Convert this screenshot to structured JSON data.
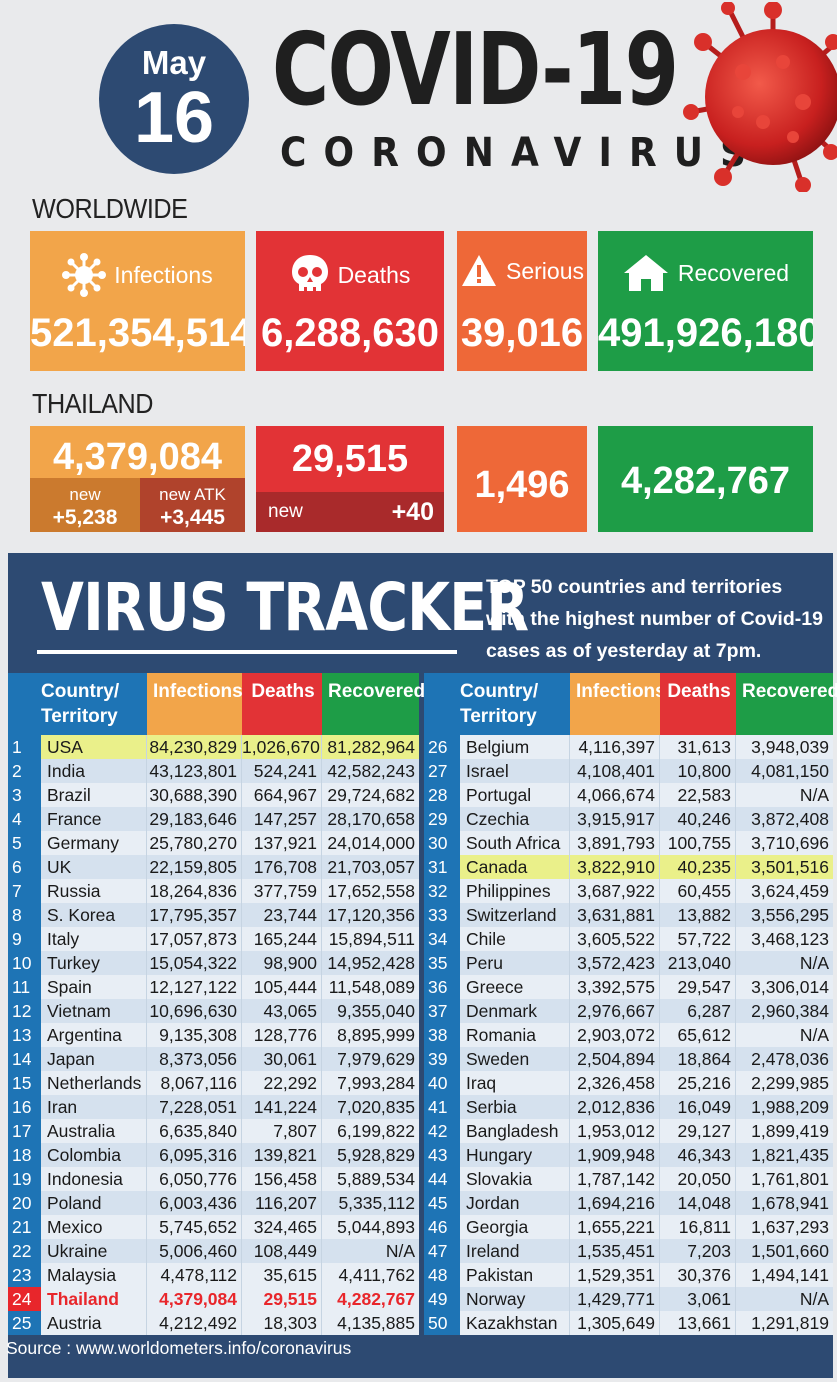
{
  "header": {
    "month": "May",
    "day": "16",
    "title": "COVID-19",
    "subtitle": "CORONAVIRUS"
  },
  "worldwide": {
    "label": "WORLDWIDE",
    "infections_label": "Infections",
    "infections": "521,354,514",
    "deaths_label": "Deaths",
    "deaths": "6,288,630",
    "serious_label": "Serious",
    "serious": "39,016",
    "recovered_label": "Recovered",
    "recovered": "491,926,180"
  },
  "thailand": {
    "label": "THAILAND",
    "infections": "4,379,084",
    "new_label": "new",
    "new_value": "+5,238",
    "new_atk_label": "new ATK",
    "new_atk_value": "+3,445",
    "deaths": "29,515",
    "deaths_new_label": "new",
    "deaths_new_value": "+40",
    "serious": "1,496",
    "recovered": "4,282,767"
  },
  "tracker": {
    "title": "VIRUS TRACKER",
    "desc_bold": "TOP 50",
    "desc_rest": " countries and territories with the highest number of Covid-19 cases as of yesterday at 7pm.",
    "col_country": "Country/ Territory",
    "col_infections": "Infections",
    "col_deaths": "Deaths",
    "col_recovered": "Recovered",
    "source": "Source : www.worldometers.info/coronavirus",
    "highlight_colors": {
      "yellow": "#eaf08a",
      "thailand_text": "#e8262b"
    },
    "rows": [
      [
        "1",
        "USA",
        "84,230,829",
        "1,026,670",
        "81,282,964",
        "yellow"
      ],
      [
        "2",
        "India",
        "43,123,801",
        "524,241",
        "42,582,243",
        ""
      ],
      [
        "3",
        "Brazil",
        "30,688,390",
        "664,967",
        "29,724,682",
        ""
      ],
      [
        "4",
        "France",
        "29,183,646",
        "147,257",
        "28,170,658",
        ""
      ],
      [
        "5",
        "Germany",
        "25,780,270",
        "137,921",
        "24,014,000",
        ""
      ],
      [
        "6",
        "UK",
        "22,159,805",
        "176,708",
        "21,703,057",
        ""
      ],
      [
        "7",
        "Russia",
        "18,264,836",
        "377,759",
        "17,652,558",
        ""
      ],
      [
        "8",
        "S. Korea",
        "17,795,357",
        "23,744",
        "17,120,356",
        ""
      ],
      [
        "9",
        "Italy",
        "17,057,873",
        "165,244",
        "15,894,511",
        ""
      ],
      [
        "10",
        "Turkey",
        "15,054,322",
        "98,900",
        "14,952,428",
        ""
      ],
      [
        "11",
        "Spain",
        "12,127,122",
        "105,444",
        "11,548,089",
        ""
      ],
      [
        "12",
        "Vietnam",
        "10,696,630",
        "43,065",
        "9,355,040",
        ""
      ],
      [
        "13",
        "Argentina",
        "9,135,308",
        "128,776",
        "8,895,999",
        ""
      ],
      [
        "14",
        "Japan",
        "8,373,056",
        "30,061",
        "7,979,629",
        ""
      ],
      [
        "15",
        "Netherlands",
        "8,067,116",
        "22,292",
        "7,993,284",
        ""
      ],
      [
        "16",
        "Iran",
        "7,228,051",
        "141,224",
        "7,020,835",
        ""
      ],
      [
        "17",
        "Australia",
        "6,635,840",
        "7,807",
        "6,199,822",
        ""
      ],
      [
        "18",
        "Colombia",
        "6,095,316",
        "139,821",
        "5,928,829",
        ""
      ],
      [
        "19",
        "Indonesia",
        "6,050,776",
        "156,458",
        "5,889,534",
        ""
      ],
      [
        "20",
        "Poland",
        "6,003,436",
        "116,207",
        "5,335,112",
        ""
      ],
      [
        "21",
        "Mexico",
        "5,745,652",
        "324,465",
        "5,044,893",
        ""
      ],
      [
        "22",
        "Ukraine",
        "5,006,460",
        "108,449",
        "N/A",
        ""
      ],
      [
        "23",
        "Malaysia",
        "4,478,112",
        "35,615",
        "4,411,762",
        ""
      ],
      [
        "24",
        "Thailand",
        "4,379,084",
        "29,515",
        "4,282,767",
        "thailand"
      ],
      [
        "25",
        "Austria",
        "4,212,492",
        "18,303",
        "4,135,885",
        ""
      ],
      [
        "26",
        "Belgium",
        "4,116,397",
        "31,613",
        "3,948,039",
        ""
      ],
      [
        "27",
        "Israel",
        "4,108,401",
        "10,800",
        "4,081,150",
        ""
      ],
      [
        "28",
        "Portugal",
        "4,066,674",
        "22,583",
        "N/A",
        ""
      ],
      [
        "29",
        "Czechia",
        "3,915,917",
        "40,246",
        "3,872,408",
        ""
      ],
      [
        "30",
        "South Africa",
        "3,891,793",
        "100,755",
        "3,710,696",
        ""
      ],
      [
        "31",
        "Canada",
        "3,822,910",
        "40,235",
        "3,501,516",
        "yellow"
      ],
      [
        "32",
        "Philippines",
        "3,687,922",
        "60,455",
        "3,624,459",
        ""
      ],
      [
        "33",
        "Switzerland",
        "3,631,881",
        "13,882",
        "3,556,295",
        ""
      ],
      [
        "34",
        "Chile",
        "3,605,522",
        "57,722",
        "3,468,123",
        ""
      ],
      [
        "35",
        "Peru",
        "3,572,423",
        "213,040",
        "N/A",
        ""
      ],
      [
        "36",
        "Greece",
        "3,392,575",
        "29,547",
        "3,306,014",
        ""
      ],
      [
        "37",
        "Denmark",
        "2,976,667",
        "6,287",
        "2,960,384",
        ""
      ],
      [
        "38",
        "Romania",
        "2,903,072",
        "65,612",
        "N/A",
        ""
      ],
      [
        "39",
        "Sweden",
        "2,504,894",
        "18,864",
        "2,478,036",
        ""
      ],
      [
        "40",
        "Iraq",
        "2,326,458",
        "25,216",
        "2,299,985",
        ""
      ],
      [
        "41",
        "Serbia",
        "2,012,836",
        "16,049",
        "1,988,209",
        ""
      ],
      [
        "42",
        "Bangladesh",
        "1,953,012",
        "29,127",
        "1,899,419",
        ""
      ],
      [
        "43",
        "Hungary",
        "1,909,948",
        "46,343",
        "1,821,435",
        ""
      ],
      [
        "44",
        "Slovakia",
        "1,787,142",
        "20,050",
        "1,761,801",
        ""
      ],
      [
        "45",
        "Jordan",
        "1,694,216",
        "14,048",
        "1,678,941",
        ""
      ],
      [
        "46",
        "Georgia",
        "1,655,221",
        "16,811",
        "1,637,293",
        ""
      ],
      [
        "47",
        "Ireland",
        "1,535,451",
        "7,203",
        "1,501,660",
        ""
      ],
      [
        "48",
        "Pakistan",
        "1,529,351",
        "30,376",
        "1,494,141",
        ""
      ],
      [
        "49",
        "Norway",
        "1,429,771",
        "3,061",
        "N/A",
        ""
      ],
      [
        "50",
        "Kazakhstan",
        "1,305,649",
        "13,661",
        "1,291,819",
        ""
      ]
    ]
  }
}
